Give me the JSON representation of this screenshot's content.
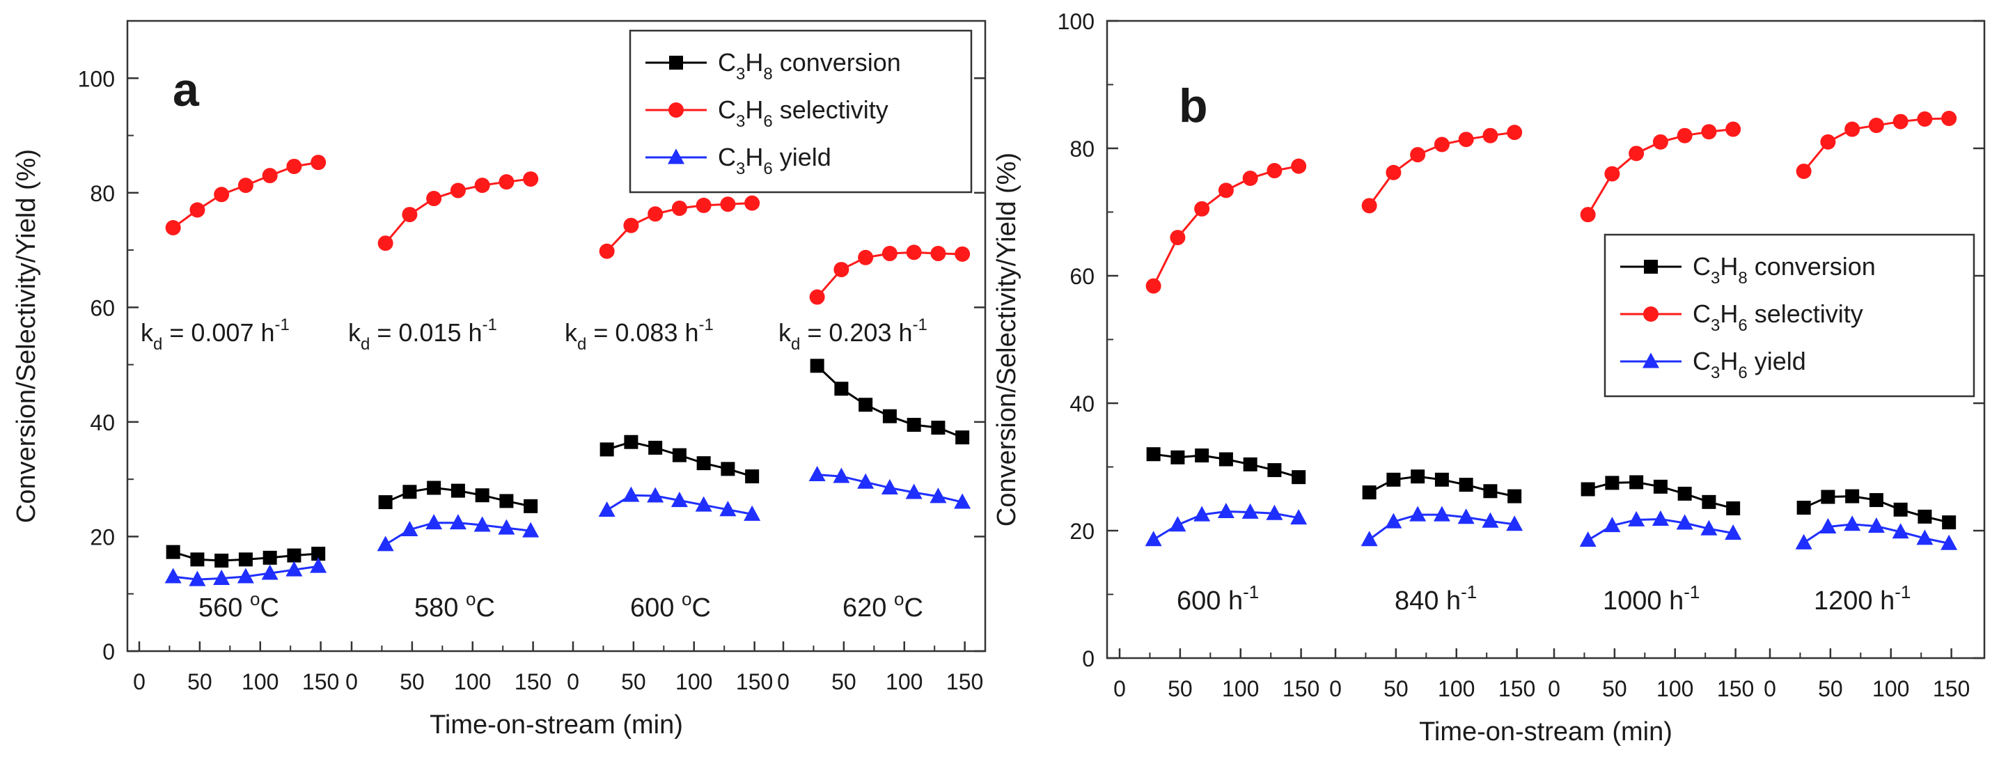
{
  "colors": {
    "conversion": "#000000",
    "selectivity": "#ff1a1a",
    "yield": "#1f2fff",
    "axis": "#333333"
  },
  "chart_data": [
    {
      "type": "line",
      "panel_label": "a",
      "xlabel": "Time-on-stream (min)",
      "ylabel": "Conversion/Selectivity/Yield (%)",
      "ylim": [
        0,
        110
      ],
      "y_ticks": [
        "0",
        "20",
        "40",
        "60",
        "80",
        "100"
      ],
      "x_ticks_per_segment": [
        "0",
        "50",
        "100",
        "150"
      ],
      "x_segment_range": [
        0,
        160
      ],
      "legend_position": "top-right",
      "legend": {
        "conversion": {
          "pre": "C",
          "sub": "3",
          "mid": "H",
          "sub2": "8",
          "post": " conversion"
        },
        "selectivity": {
          "pre": "C",
          "sub": "3",
          "mid": "H",
          "sub2": "6",
          "post": " selectivity"
        },
        "yield": {
          "pre": "C",
          "sub": "3",
          "mid": "H",
          "sub2": "6",
          "post": " yield"
        }
      },
      "x": [
        28,
        48,
        68,
        88,
        108,
        128,
        148
      ],
      "segments": [
        {
          "label_main": "560 ",
          "label_sup": "o",
          "label_unit": "C",
          "kd_main": "k",
          "kd_sub": "d",
          "kd_value": " = 0.007 h",
          "kd_sup": "-1",
          "conversion": [
            17.3,
            16.0,
            15.8,
            16.0,
            16.3,
            16.7,
            17.0
          ],
          "selectivity": [
            73.9,
            77.0,
            79.7,
            81.3,
            83.0,
            84.6,
            85.3
          ],
          "yield": [
            13.0,
            12.5,
            12.7,
            13.0,
            13.6,
            14.2,
            14.8
          ]
        },
        {
          "label_main": "580 ",
          "label_sup": "o",
          "label_unit": "C",
          "kd_main": "k",
          "kd_sub": "d",
          "kd_value": " = 0.015 h",
          "kd_sup": "-1",
          "conversion": [
            26.0,
            27.8,
            28.5,
            28.0,
            27.2,
            26.2,
            25.3
          ],
          "selectivity": [
            71.2,
            76.2,
            79.0,
            80.4,
            81.3,
            81.9,
            82.4
          ],
          "yield": [
            18.6,
            21.2,
            22.4,
            22.4,
            22.0,
            21.5,
            21.0
          ]
        },
        {
          "label_main": "600 ",
          "label_sup": "o",
          "label_unit": "C",
          "kd_main": "k",
          "kd_sub": "d",
          "kd_value": " = 0.083 h",
          "kd_sup": "-1",
          "conversion": [
            35.2,
            36.5,
            35.5,
            34.2,
            32.8,
            31.8,
            30.5
          ],
          "selectivity": [
            69.8,
            74.3,
            76.3,
            77.3,
            77.8,
            78.0,
            78.2
          ],
          "yield": [
            24.6,
            27.2,
            27.1,
            26.3,
            25.5,
            24.7,
            23.9
          ]
        },
        {
          "label_main": "620 ",
          "label_sup": "o",
          "label_unit": "C",
          "kd_main": "k",
          "kd_sub": "d",
          "kd_value": " = 0.203 h",
          "kd_sup": "-1",
          "conversion": [
            49.8,
            45.8,
            43.0,
            41.0,
            39.5,
            39.0,
            37.3
          ],
          "selectivity": [
            61.8,
            66.6,
            68.7,
            69.4,
            69.6,
            69.4,
            69.3
          ],
          "yield": [
            30.8,
            30.5,
            29.5,
            28.5,
            27.7,
            27.0,
            26.0
          ]
        }
      ]
    },
    {
      "type": "line",
      "panel_label": "b",
      "xlabel": "Time-on-stream (min)",
      "ylabel": "Conversion/Selectivity/Yield (%)",
      "ylim": [
        0,
        100
      ],
      "y_ticks": [
        "0",
        "20",
        "40",
        "60",
        "80",
        "100"
      ],
      "x_ticks_per_segment": [
        "0",
        "50",
        "100",
        "150"
      ],
      "x_segment_range": [
        0,
        160
      ],
      "legend_position": "middle-right",
      "legend": {
        "conversion": {
          "pre": "C",
          "sub": "3",
          "mid": "H",
          "sub2": "8",
          "post": " conversion"
        },
        "selectivity": {
          "pre": "C",
          "sub": "3",
          "mid": "H",
          "sub2": "6",
          "post": " selectivity"
        },
        "yield": {
          "pre": "C",
          "sub": "3",
          "mid": "H",
          "sub2": "6",
          "post": " yield"
        }
      },
      "x": [
        28,
        48,
        68,
        88,
        108,
        128,
        148
      ],
      "segments": [
        {
          "label_main": "600 h",
          "label_sup": "-1",
          "conversion": [
            32.0,
            31.5,
            31.8,
            31.2,
            30.4,
            29.5,
            28.4
          ],
          "selectivity": [
            58.4,
            66.0,
            70.5,
            73.4,
            75.3,
            76.5,
            77.2
          ],
          "yield": [
            18.6,
            20.9,
            22.5,
            23.0,
            22.9,
            22.7,
            22.0
          ]
        },
        {
          "label_main": "840 h",
          "label_sup": "-1",
          "conversion": [
            26.0,
            28.0,
            28.5,
            28.0,
            27.2,
            26.2,
            25.4
          ],
          "selectivity": [
            71.0,
            76.2,
            79.0,
            80.6,
            81.4,
            82.0,
            82.5
          ],
          "yield": [
            18.6,
            21.4,
            22.5,
            22.5,
            22.1,
            21.5,
            21.0
          ]
        },
        {
          "label_main": "1000 h",
          "label_sup": "-1",
          "conversion": [
            26.5,
            27.5,
            27.6,
            26.9,
            25.8,
            24.5,
            23.5
          ],
          "selectivity": [
            69.6,
            76.0,
            79.2,
            81.0,
            82.0,
            82.6,
            83.0
          ],
          "yield": [
            18.5,
            20.8,
            21.7,
            21.8,
            21.2,
            20.3,
            19.6
          ]
        },
        {
          "label_main": "1200 h",
          "label_sup": "-1",
          "conversion": [
            23.6,
            25.3,
            25.4,
            24.8,
            23.3,
            22.2,
            21.3
          ],
          "selectivity": [
            76.4,
            81.0,
            83.0,
            83.6,
            84.2,
            84.6,
            84.7
          ],
          "yield": [
            18.1,
            20.6,
            21.0,
            20.7,
            19.8,
            18.8,
            18.0
          ]
        }
      ]
    }
  ]
}
